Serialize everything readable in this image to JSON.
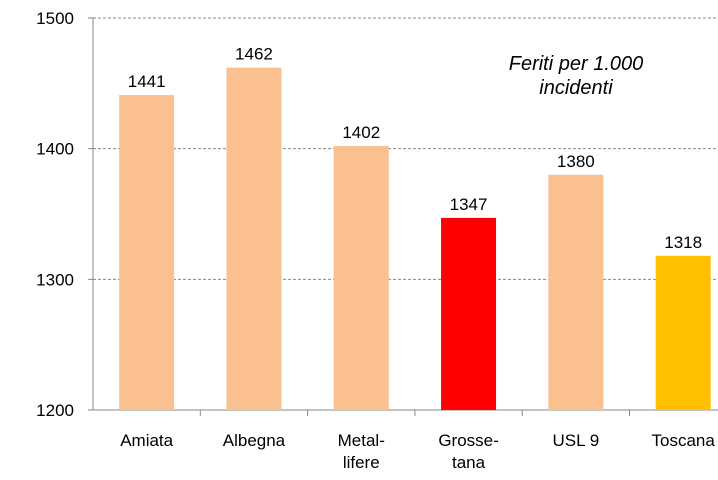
{
  "chart_data": {
    "type": "bar",
    "annotation": "Feriti per 1.000\nincidenti",
    "categories": [
      "Amiata",
      "Albegna",
      "Metal-\nlifere",
      "Grosse-\ntana",
      "USL 9",
      "Toscana"
    ],
    "values": [
      1441,
      1462,
      1402,
      1347,
      1380,
      1318
    ],
    "colors": [
      "#fac090",
      "#fac090",
      "#fac090",
      "#ff0000",
      "#fac090",
      "#ffc000"
    ],
    "ylim": [
      1200,
      1500
    ],
    "yticks": [
      1200,
      1300,
      1400,
      1500
    ],
    "grid": true
  }
}
